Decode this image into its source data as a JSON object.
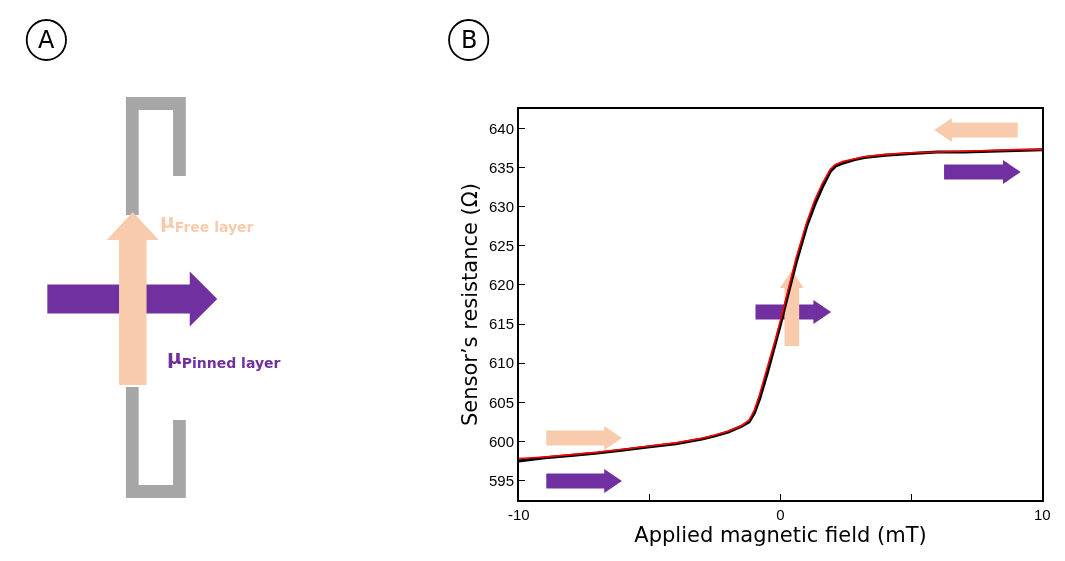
{
  "chart_data": [
    {
      "type": "other",
      "title": "A",
      "annotations": [
        "μ$_{Free layer}$",
        "μ$_{Pinned layer}$"
      ]
    },
    {
      "type": "line",
      "title": "B",
      "xlabel": "Applied magnetic field (mT)",
      "ylabel": "Sensor’s resistance (Ω)",
      "x": [
        -10,
        -9,
        -8,
        -7,
        -6,
        -5,
        -4,
        -3,
        -2.5,
        -2,
        -1.5,
        -1.2,
        -1,
        -0.8,
        -0.5,
        -0.2,
        0,
        0.3,
        0.6,
        1,
        1.3,
        1.6,
        1.9,
        2.1,
        2.4,
        2.8,
        3.2,
        4,
        5,
        6,
        7,
        8,
        9,
        10
      ],
      "series": [
        {
          "color": "#000000",
          "values": [
            597.5,
            597.9,
            598.2,
            598.5,
            598.9,
            599.3,
            599.7,
            600.3,
            600.7,
            601.2,
            601.9,
            602.5,
            603.6,
            605.4,
            608.8,
            612.5,
            615,
            619,
            622.9,
            627.5,
            630.2,
            632.5,
            634.5,
            635.2,
            635.6,
            636,
            636.3,
            636.6,
            636.8,
            637,
            637,
            637.1,
            637.2,
            637.3
          ]
        },
        {
          "color": "#ff0000",
          "values": [
            597.8,
            598,
            598.3,
            598.6,
            599,
            599.4,
            599.8,
            600.4,
            600.8,
            601.3,
            602,
            602.7,
            604,
            606,
            609.5,
            613,
            615.5,
            619.5,
            623.5,
            628,
            630.8,
            633,
            634.8,
            635.4,
            635.8,
            636.1,
            636.4,
            636.7,
            636.9,
            637,
            637.1,
            637.2,
            637.3,
            637.3
          ]
        }
      ],
      "xlim": [
        -10,
        10
      ],
      "xticks": [
        -10,
        {
          "value": -5,
          "label": null
        },
        0,
        {
          "value": 5,
          "label": null
        },
        10
      ],
      "ylim": [
        592.5,
        642.5
      ],
      "yticks": [
        595,
        600,
        605,
        610,
        615,
        620,
        625,
        630,
        635,
        640
      ],
      "grid": false,
      "marker": "none",
      "line_style": "solid"
    }
  ]
}
